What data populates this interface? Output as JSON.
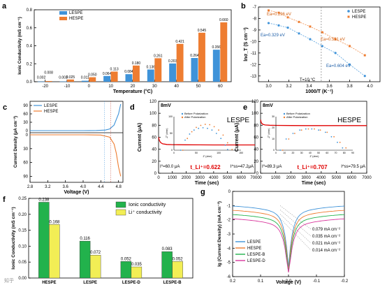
{
  "figure": {
    "panels": {
      "a": "a",
      "b": "b",
      "c": "c",
      "d": "d",
      "e": "e",
      "f": "f",
      "g": "g"
    },
    "watermark": "知乎"
  },
  "chart_data": [
    {
      "panel": "a",
      "type": "bar",
      "categories": [
        "-20",
        "-10",
        "0",
        "10",
        "20",
        "30",
        "40",
        "50",
        "60"
      ],
      "series": [
        {
          "name": "LESPE",
          "color": "#3f93d9",
          "values": [
            0.002,
            0.003,
            0.011,
            0.064,
            0.084,
            0.136,
            0.203,
            0.264,
            0.356
          ]
        },
        {
          "name": "HESPE",
          "color": "#ee7d31",
          "values": [
            0.008,
            0.025,
            0.05,
            0.113,
            0.18,
            0.261,
            0.421,
            0.545,
            0.66
          ]
        }
      ],
      "value_labels": {
        "LESPE": [
          "0.002",
          "0.003",
          "0.011",
          "0.064",
          "0.084",
          "0.136",
          "0.203",
          "0.264",
          "0.356"
        ],
        "HESPE": [
          "0.008",
          "0.025",
          "0.050",
          "0.113",
          "0.180",
          "0.261",
          "0.421",
          "0.545",
          "0.660"
        ]
      },
      "xlabel": "Temperature (°C)",
      "ylabel": "Ionic Conductivity (mS cm⁻¹)",
      "ylim": [
        0,
        0.8
      ],
      "yticks": [
        "0.0",
        "0.2",
        "0.4",
        "0.6",
        "0.8"
      ],
      "legend_position": "top-left"
    },
    {
      "panel": "b",
      "type": "scatter",
      "series": [
        {
          "name": "LESPE",
          "color": "#3f93d9",
          "x": [
            3.0,
            3.1,
            3.19,
            3.3,
            3.41,
            3.53,
            3.66,
            3.8,
            3.95
          ],
          "y": [
            -8.4,
            -8.6,
            -8.8,
            -9.3,
            -9.8,
            -10.4,
            -11.0,
            -12.0,
            -13.0
          ]
        },
        {
          "name": "HESPE",
          "color": "#ee7d31",
          "x": [
            3.0,
            3.1,
            3.19,
            3.3,
            3.41,
            3.53,
            3.66,
            3.8,
            3.95
          ],
          "y": [
            -7.3,
            -7.5,
            -7.9,
            -8.3,
            -8.7,
            -9.2,
            -9.8,
            -10.4,
            -11.2
          ]
        }
      ],
      "annotations": [
        "Ea=0.296 eV",
        "Ea=0.329 eV",
        "Ea=0.531 eV",
        "Ea=0.604 eV",
        "T=10 °C"
      ],
      "xlabel": "1000/T (K⁻¹)",
      "ylabel": "lnσ_T (S cm⁻¹)",
      "xlim": [
        2.9,
        4.1
      ],
      "ylim": [
        -13.5,
        -7
      ],
      "xticks": [
        "3.0",
        "3.2",
        "3.4",
        "3.6",
        "3.8",
        "4.0"
      ],
      "yticks": [
        "-7",
        "-8",
        "-9",
        "-10",
        "-11",
        "-12",
        "-13"
      ],
      "legend_position": "top-right"
    },
    {
      "panel": "c",
      "type": "line",
      "series": [
        {
          "name": "LESPE",
          "color": "#3f93d9",
          "x": [
            2.8,
            3.2,
            3.6,
            4.0,
            4.3,
            4.5,
            4.6,
            4.7,
            4.8,
            4.85
          ],
          "y": [
            0,
            0,
            0,
            0,
            0.5,
            2,
            6,
            20,
            60,
            95
          ]
        },
        {
          "name": "HESPE",
          "color": "#ee7d31",
          "x": [
            2.8,
            3.2,
            3.6,
            4.0,
            4.4,
            4.6,
            4.7,
            4.75,
            4.8,
            4.85
          ],
          "y": [
            0,
            0,
            0,
            0,
            0.5,
            5,
            20,
            40,
            70,
            90
          ]
        }
      ],
      "xlabel": "Voltage (V)",
      "ylabel": "Current Density (μA cm⁻²)",
      "xlim": [
        2.8,
        4.9
      ],
      "xticks": [
        "2.8",
        "3.2",
        "3.6",
        "4.0",
        "4.4",
        "4.8"
      ],
      "yticks_top": [
        "0",
        "30",
        "60",
        "90"
      ],
      "yticks_bottom": [
        "0",
        "30",
        "60",
        "90"
      ],
      "legend_position": "top-left"
    },
    {
      "panel": "d",
      "type": "line",
      "title": "LESPE",
      "corner_label": "8mV",
      "series": [
        {
          "name": "current",
          "color": "#e00000",
          "x": [
            0,
            50,
            150,
            300,
            600,
            1000,
            2000,
            3000,
            4000,
            5000,
            6000,
            7000
          ],
          "y": [
            60,
            55,
            51,
            49,
            48,
            47.6,
            47.4,
            47.3,
            47.2,
            47.2,
            47.2,
            47.2
          ]
        }
      ],
      "inset": {
        "type": "scatter",
        "series": [
          {
            "name": "Before Polarization",
            "color": "#3f93d9",
            "x": [
              15,
              25,
              35,
              45,
              55,
              65,
              75,
              85,
              95,
              105,
              115,
              120
            ],
            "y": [
              0,
              30,
              48,
              60,
              65,
              67,
              65,
              60,
              50,
              35,
              15,
              2
            ]
          },
          {
            "name": "After Polarization",
            "color": "#ee7d31",
            "x": [
              20,
              30,
              40,
              50,
              60,
              70,
              80,
              90,
              100,
              110,
              120,
              130
            ],
            "y": [
              0,
              35,
              55,
              68,
              74,
              77,
              76,
              70,
              60,
              45,
              22,
              2
            ]
          }
        ],
        "xlabel": "Z' (ohm)",
        "ylabel": "-Z'' (ohm)",
        "xticks": [
          "0",
          "50",
          "100",
          "150"
        ],
        "yticks": [
          "0",
          "50",
          "100"
        ]
      },
      "annotations": {
        "i0": "I⁰=60.0 μA",
        "tLi": "t_Li⁺=0.622",
        "iss": "I^ss=47.2μA"
      },
      "xlabel": "Time (sec)",
      "ylabel": "Current (μA)",
      "xlim": [
        0,
        7000
      ],
      "ylim": [
        0,
        120
      ],
      "xticks": [
        "0",
        "1000",
        "2000",
        "3000",
        "4000",
        "5000",
        "6000",
        "7000"
      ],
      "yticks": [
        "0",
        "20",
        "40",
        "60",
        "80",
        "100",
        "120"
      ]
    },
    {
      "panel": "e",
      "type": "line",
      "title": "HESPE",
      "corner_label": "8mV",
      "series": [
        {
          "name": "current",
          "color": "#e00000",
          "x": [
            0,
            50,
            150,
            300,
            600,
            1000,
            2000,
            3000,
            4000,
            5000,
            6000,
            7000
          ],
          "y": [
            89.3,
            84,
            81.5,
            80.5,
            80,
            79.8,
            79.6,
            79.5,
            79.5,
            79.5,
            79.5,
            79.5
          ]
        }
      ],
      "inset": {
        "type": "scatter",
        "series": [
          {
            "name": "Before Polarization",
            "color": "#3f93d9",
            "x": [
              5,
              12,
              20,
              28,
              35,
              42,
              50,
              58,
              65,
              72,
              78
            ],
            "y": [
              0,
              10,
              15,
              18,
              19,
              19,
              18,
              16,
              12,
              7,
              2
            ]
          },
          {
            "name": "After Polarization",
            "color": "#ee7d31",
            "x": [
              8,
              15,
              22,
              30,
              38,
              45,
              52,
              60,
              68,
              75,
              82
            ],
            "y": [
              0,
              10,
              15,
              18,
              19,
              19,
              18,
              16,
              12,
              7,
              2
            ]
          }
        ],
        "xlabel": "Z' (ohm)",
        "ylabel": "-Z'' (ohm)",
        "xticks": [
          "0",
          "10",
          "20",
          "30",
          "40",
          "50",
          "60",
          "70",
          "80",
          "90"
        ],
        "yticks": [
          "0",
          "10",
          "20",
          "30"
        ]
      },
      "annotations": {
        "i0": "I⁰=89.3 μA",
        "tLi": "t_Li⁺=0.707",
        "iss": "I^ss=79.5 μA"
      },
      "xlabel": "Time (sec)",
      "ylabel": "Current (μA)",
      "xlim": [
        0,
        7000
      ],
      "ylim": [
        0,
        120
      ],
      "xticks": [
        "0",
        "1000",
        "2000",
        "3000",
        "4000",
        "5000",
        "6000",
        "7000"
      ],
      "yticks": [
        "0",
        "20",
        "40",
        "60",
        "80",
        "100",
        "120"
      ]
    },
    {
      "panel": "f",
      "type": "bar",
      "categories": [
        "HESPE",
        "LESPE",
        "LESPE-D",
        "LESPE-B"
      ],
      "series": [
        {
          "name": "Ionic conductivity",
          "color": "#22b24c",
          "values": [
            0.238,
            0.116,
            0.052,
            0.083
          ]
        },
        {
          "name": "Li⁺ conductivity",
          "color": "#f2ee55",
          "values": [
            0.168,
            0.072,
            0.035,
            0.052
          ]
        }
      ],
      "value_labels": {
        "Ionic conductivity": [
          "0.238",
          "0.116",
          "0.052",
          "0.083"
        ],
        "Li⁺ conductivity": [
          "0.168",
          "0.072",
          "0.035",
          "0.052"
        ]
      },
      "ylabel": "Ionic Conductivity (mS cm⁻¹)",
      "ylim": [
        0,
        0.25
      ],
      "yticks": [
        "0.00",
        "0.05",
        "0.10",
        "0.15",
        "0.20",
        "0.25"
      ],
      "legend_position": "top-right"
    },
    {
      "panel": "g",
      "type": "line",
      "series": [
        {
          "name": "LESPE",
          "color": "#3f93d9"
        },
        {
          "name": "HESPE",
          "color": "#ee7d31"
        },
        {
          "name": "LESPE-B",
          "color": "#22b24c"
        },
        {
          "name": "LESPE-D",
          "color": "#d8379c"
        }
      ],
      "annotations": [
        "0.079 mA cm⁻²",
        "0.035 mA cm⁻²",
        "0.021 mA cm⁻²",
        "0.014 mA cm⁻²"
      ],
      "xlabel": "Voltage (V)",
      "ylabel": "lg (Current Density) (mA cm⁻²)",
      "xlim": [
        0.2,
        -0.2
      ],
      "ylim": [
        -6,
        0
      ],
      "xticks": [
        "0.2",
        "0.1",
        "0.0",
        "-0.1",
        "-0.2"
      ],
      "yticks": [
        "-6",
        "-5",
        "-4",
        "-3",
        "-2",
        "-1",
        "0"
      ],
      "legend_position": "bottom-left"
    }
  ]
}
